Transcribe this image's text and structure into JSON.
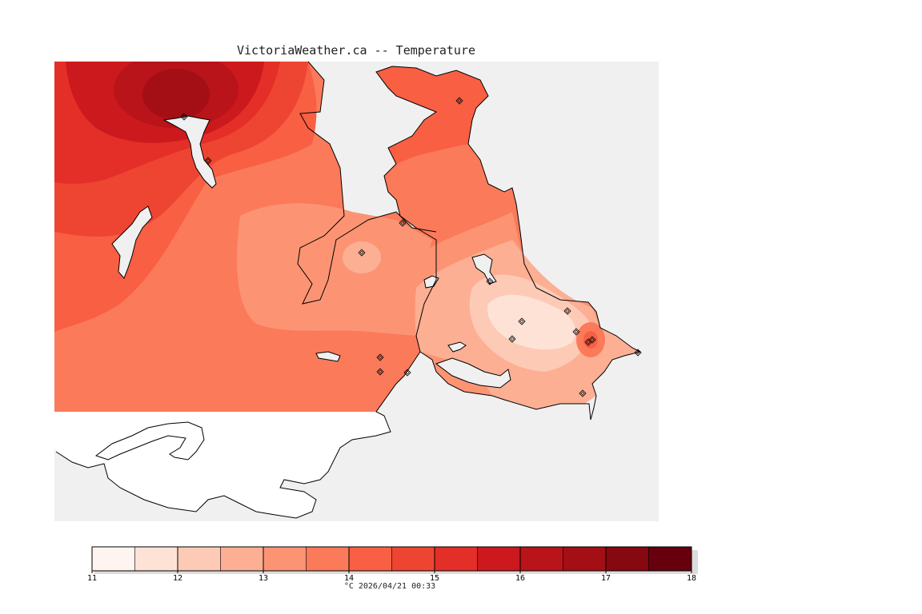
{
  "header": {
    "title": "VictoriaWeather.ca -- Temperature"
  },
  "map": {
    "variable": "Temperature",
    "units": "°C",
    "land_masked_color": "#ffffff",
    "water_color": "#f0f0f0",
    "coastline_color": "#000000",
    "station_marker": "diamond-icon",
    "station_count": 17,
    "warmest_area": "north-west",
    "coolest_area": "south-east"
  },
  "legend": {
    "ticks": [
      "11",
      "12",
      "13",
      "14",
      "15",
      "16",
      "17",
      "18"
    ],
    "min": 11,
    "max": 18,
    "step": 0.5,
    "colors": [
      "#fff5f0",
      "#fee2d6",
      "#fdcab5",
      "#fcaf93",
      "#fc9474",
      "#fb7a5a",
      "#f85f43",
      "#ee4533",
      "#e32f27",
      "#cc191d",
      "#b81419",
      "#a40f16",
      "#860811",
      "#67000d"
    ]
  },
  "footer": {
    "units": "°C",
    "timestamp": "2026/04/21 00:33"
  }
}
